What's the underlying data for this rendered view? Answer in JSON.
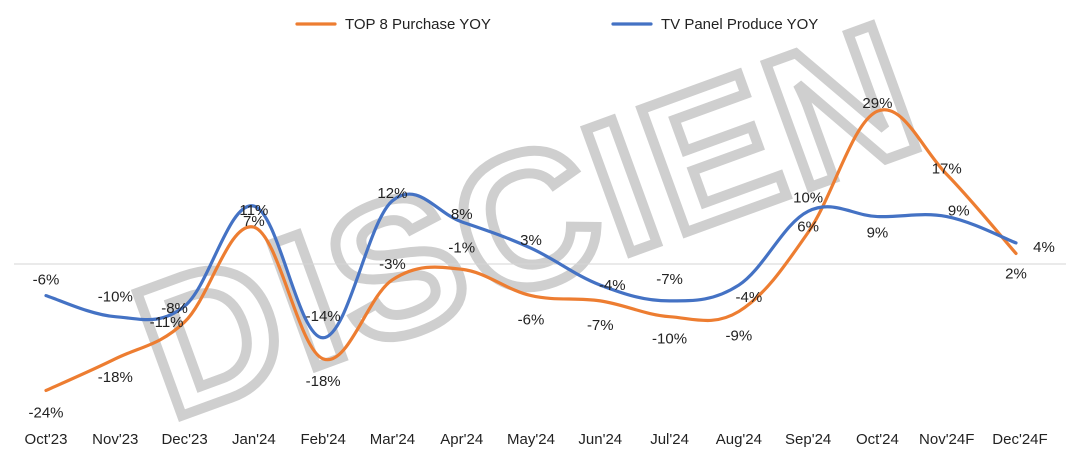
{
  "chart_data": {
    "type": "line",
    "categories": [
      "Oct'23",
      "Nov'23",
      "Dec'23",
      "Jan'24",
      "Feb'24",
      "Mar'24",
      "Apr'24",
      "May'24",
      "Jun'24",
      "Jul'24",
      "Aug'24",
      "Sep'24",
      "Oct'24",
      "Nov'24F",
      "Dec'24F"
    ],
    "series": [
      {
        "name": "TOP 8 Purchase YOY",
        "color": "#ED7D31",
        "values": [
          -24,
          -18,
          -11,
          7,
          -18,
          -3,
          -1,
          -6,
          -7,
          -10,
          -9,
          6,
          29,
          17,
          2
        ],
        "labels": [
          "-24%",
          "-18%",
          "-11%",
          "7%",
          "-18%",
          "-3%",
          "-1%",
          "-6%",
          "-7%",
          "-10%",
          "-9%",
          "6%",
          "29%",
          "17%",
          "2%"
        ]
      },
      {
        "name": "TV Panel Produce YOY",
        "color": "#4472C4",
        "values": [
          -6,
          -10,
          -8,
          11,
          -14,
          12,
          8,
          3,
          -4,
          -7,
          -4,
          10,
          9,
          9,
          4
        ],
        "labels": [
          "-6%",
          "-10%",
          "-8%",
          "11%",
          "-14%",
          "12%",
          "8%",
          "3%",
          "-4%",
          "-7%",
          "-4%",
          "10%",
          "9%",
          "9%",
          "4%"
        ]
      }
    ],
    "title": "",
    "xlabel": "",
    "ylabel": "",
    "ylim": [
      -30,
      33
    ],
    "grid": false,
    "legend_position": "top",
    "watermark": "DISCIEN"
  }
}
